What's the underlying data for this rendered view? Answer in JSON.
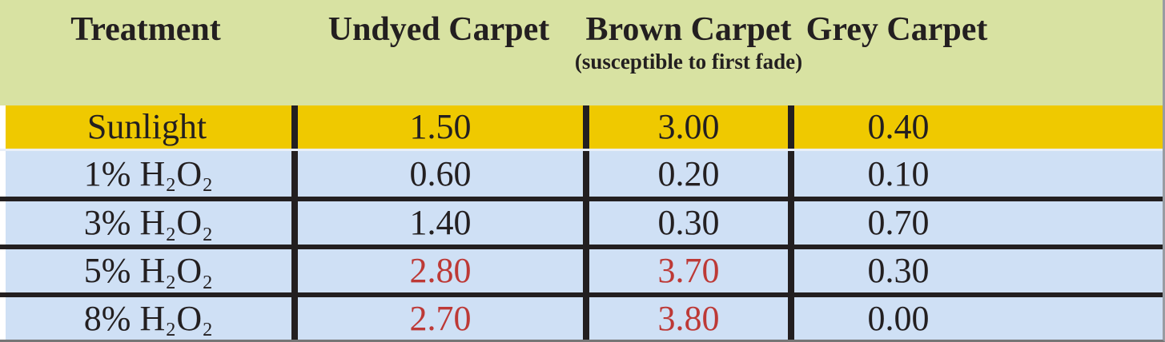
{
  "colors": {
    "ink": "#231f20",
    "header_green": "#d8e2a2",
    "gold": "#efc900",
    "blue": "#cfe0f5",
    "red": "#bd3936",
    "gap_blue": "#e9eff8",
    "edge_gray": "#989ca2",
    "bottom_gray": "#767676"
  },
  "table": {
    "columns": [
      {
        "label": "Treatment",
        "sub": ""
      },
      {
        "label": "Undyed Carpet",
        "sub": ""
      },
      {
        "label": "Brown Carpet",
        "sub": "(susceptible to first fade)"
      },
      {
        "label": "Grey Carpet",
        "sub": ""
      }
    ],
    "rows": [
      {
        "treatment": {
          "pre": "Sunlight",
          "sub1": "",
          "mid": "",
          "sub2": ""
        },
        "values": [
          {
            "text": "1.50",
            "highlight": false
          },
          {
            "text": "3.00",
            "highlight": false
          },
          {
            "text": "0.40",
            "highlight": false
          }
        ]
      },
      {
        "treatment": {
          "pre": "1% H",
          "sub1": "2",
          "mid": "O",
          "sub2": "2"
        },
        "values": [
          {
            "text": "0.60",
            "highlight": false
          },
          {
            "text": "0.20",
            "highlight": false
          },
          {
            "text": "0.10",
            "highlight": false
          }
        ]
      },
      {
        "treatment": {
          "pre": "3% H",
          "sub1": "2",
          "mid": "O",
          "sub2": "2"
        },
        "values": [
          {
            "text": "1.40",
            "highlight": false
          },
          {
            "text": "0.30",
            "highlight": false
          },
          {
            "text": "0.70",
            "highlight": false
          }
        ]
      },
      {
        "treatment": {
          "pre": "5% H",
          "sub1": "2",
          "mid": "O",
          "sub2": "2"
        },
        "values": [
          {
            "text": "2.80",
            "highlight": true
          },
          {
            "text": "3.70",
            "highlight": true
          },
          {
            "text": "0.30",
            "highlight": false
          }
        ]
      },
      {
        "treatment": {
          "pre": "8% H",
          "sub1": "2",
          "mid": "O",
          "sub2": "2"
        },
        "values": [
          {
            "text": "2.70",
            "highlight": true
          },
          {
            "text": "3.80",
            "highlight": true
          },
          {
            "text": "0.00",
            "highlight": false
          }
        ]
      }
    ]
  },
  "chart_data": {
    "type": "table",
    "title": "",
    "columns": [
      "Treatment",
      "Undyed Carpet",
      "Brown Carpet (susceptible to first fade)",
      "Grey Carpet"
    ],
    "rows": [
      [
        "Sunlight",
        1.5,
        3.0,
        0.4
      ],
      [
        "1% H2O2",
        0.6,
        0.2,
        0.1
      ],
      [
        "3% H2O2",
        1.4,
        0.3,
        0.7
      ],
      [
        "5% H2O2",
        2.8,
        3.7,
        0.3
      ],
      [
        "8% H2O2",
        2.7,
        3.8,
        0.0
      ]
    ],
    "red_highlighted_values": [
      {
        "row": "5% H2O2",
        "column": "Undyed Carpet",
        "value": 2.8
      },
      {
        "row": "5% H2O2",
        "column": "Brown Carpet",
        "value": 3.7
      },
      {
        "row": "8% H2O2",
        "column": "Undyed Carpet",
        "value": 2.7
      },
      {
        "row": "8% H2O2",
        "column": "Brown Carpet",
        "value": 3.8
      }
    ],
    "layout_hints": {
      "header_background": "#d8e2a2",
      "first_row_background": "#efc900",
      "data_row_background": "#cfe0f5",
      "grid": "thick black dividers between columns and between H2O2 rows"
    }
  }
}
